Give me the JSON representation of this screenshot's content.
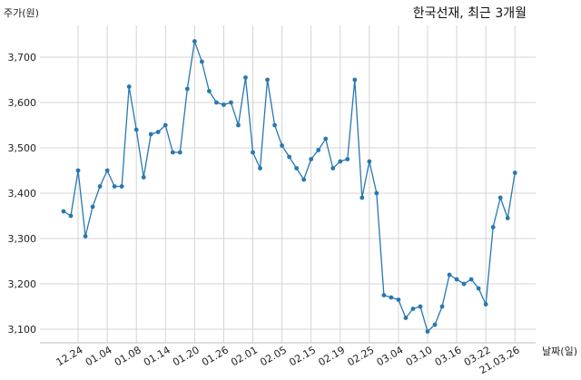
{
  "chart_data": {
    "type": "line",
    "title": "한국선재, 최근 3개월",
    "ylabel": "주가(원)",
    "xlabel": "날짜(일)",
    "ylim": [
      3070,
      3770
    ],
    "yticks": [
      3100,
      3200,
      3300,
      3400,
      3500,
      3600,
      3700
    ],
    "ytick_labels": [
      "3,100",
      "3,200",
      "3,300",
      "3,400",
      "3,500",
      "3,600",
      "3,700"
    ],
    "xtick_labels": [
      "12.24",
      "01.04",
      "01.08",
      "01.14",
      "01.20",
      "01.26",
      "02.01",
      "02.05",
      "02.15",
      "02.19",
      "02.25",
      "03.04",
      "03.10",
      "03.16",
      "03.22",
      "21.03.26"
    ],
    "xtick_index": [
      2,
      6,
      10,
      14,
      18,
      22,
      26,
      30,
      34,
      38,
      42,
      46,
      50,
      54,
      58,
      62
    ],
    "grid": true,
    "color": "#2878b0",
    "series": [
      {
        "values": [
          3360,
          3350,
          3450,
          3305,
          3370,
          3415,
          3450,
          3415,
          3415,
          3635,
          3540,
          3435,
          3530,
          3535,
          3550,
          3490,
          3490,
          3630,
          3735,
          3690,
          3625,
          3600,
          3595,
          3600,
          3550,
          3655,
          3490,
          3455,
          3650,
          3550,
          3505,
          3480,
          3455,
          3430,
          3475,
          3495,
          3520,
          3455,
          3470,
          3475,
          3650,
          3390,
          3470,
          3400,
          3175,
          3170,
          3165,
          3125,
          3145,
          3150,
          3095,
          3110,
          3150,
          3220,
          3210,
          3200,
          3210,
          3190,
          3155,
          3325,
          3390,
          3345,
          3445
        ]
      }
    ]
  }
}
